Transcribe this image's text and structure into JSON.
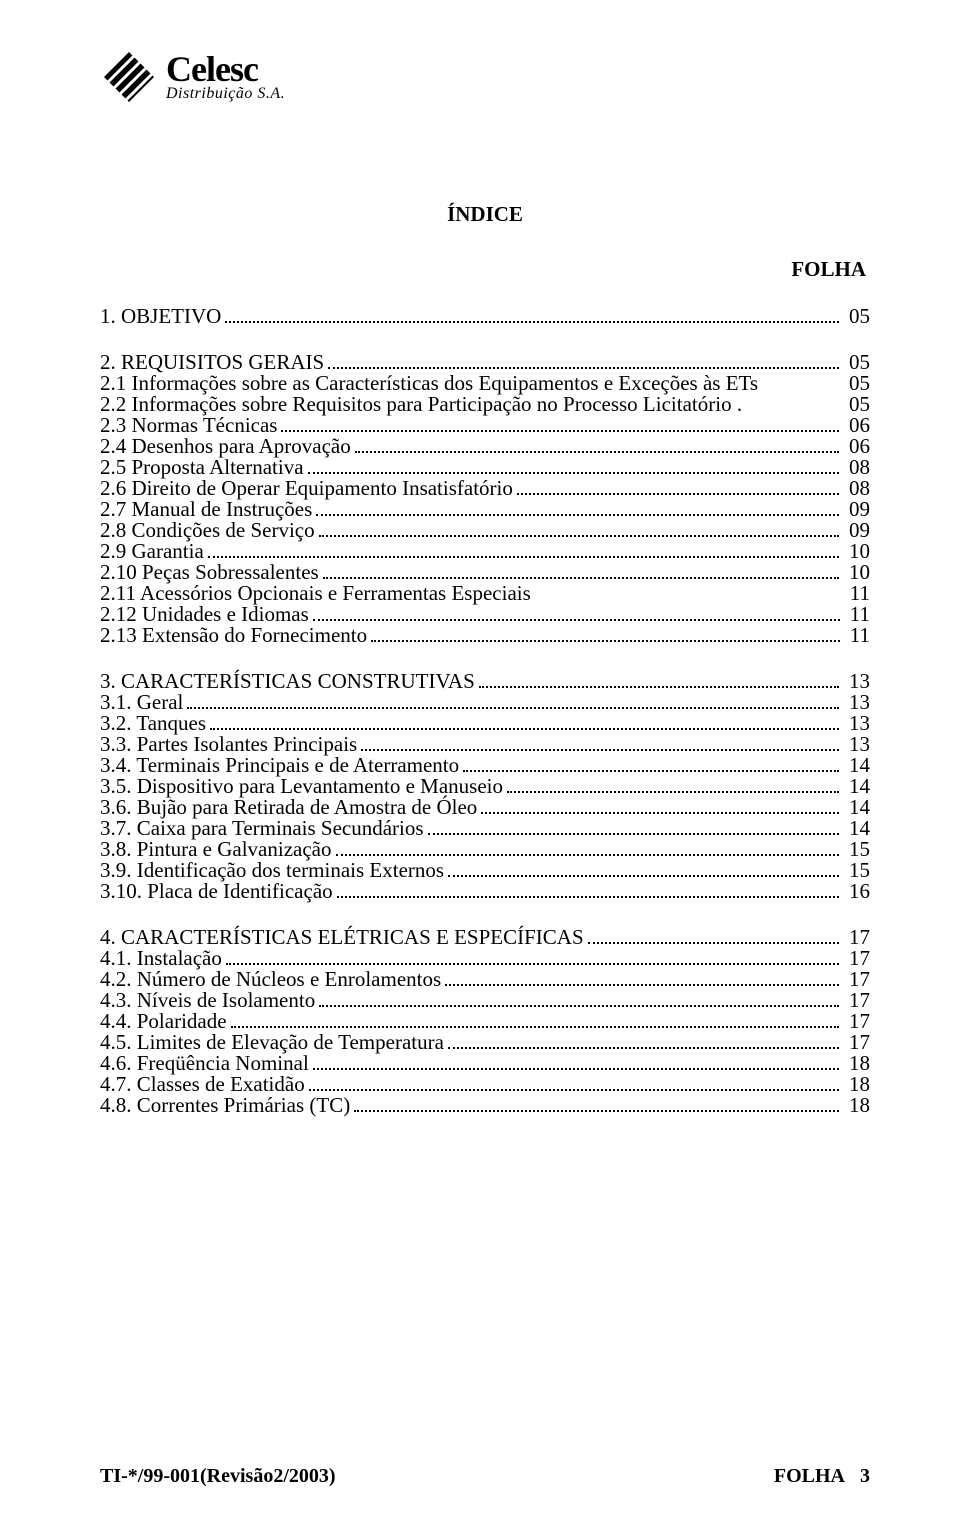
{
  "logo": {
    "brand": "Celesc",
    "sub": "Distribuição S.A."
  },
  "title": "ÍNDICE",
  "folha_header": "FOLHA",
  "sections": [
    {
      "rows": [
        {
          "label": "1. OBJETIVO",
          "page": "05",
          "dots": true
        }
      ]
    },
    {
      "rows": [
        {
          "label": "2. REQUISITOS GERAIS",
          "page": "05",
          "dots": true
        },
        {
          "label": "2.1 Informações sobre as Características dos Equipamentos e Exceções às ETs",
          "page": "05",
          "dots": false
        },
        {
          "label": "2.2 Informações sobre Requisitos para Participação no Processo Licitatório .",
          "page": "05",
          "dots": false
        },
        {
          "label": "2.3 Normas Técnicas",
          "page": "06",
          "dots": true
        },
        {
          "label": "2.4 Desenhos para Aprovação",
          "page": "06",
          "dots": true
        },
        {
          "label": "2.5 Proposta Alternativa",
          "page": "08",
          "dots": true
        },
        {
          "label": "2.6 Direito de Operar Equipamento Insatisfatório",
          "page": "08",
          "dots": true
        },
        {
          "label": "2.7 Manual de Instruções",
          "page": "09",
          "dots": true
        },
        {
          "label": "2.8 Condições de Serviço",
          "page": "09",
          "dots": true
        },
        {
          "label": "2.9 Garantia",
          "page": "10",
          "dots": true
        },
        {
          "label": "2.10 Peças Sobressalentes",
          "page": "10",
          "dots": true
        },
        {
          "label": "2.11 Acessórios Opcionais e Ferramentas Especiais",
          "page": "11",
          "dots": false
        },
        {
          "label": "2.12 Unidades e Idiomas",
          "page": "11",
          "dots": true
        },
        {
          "label": "2.13 Extensão do Fornecimento",
          "page": "11",
          "dots": true
        }
      ]
    },
    {
      "rows": [
        {
          "label": "3. CARACTERÍSTICAS CONSTRUTIVAS",
          "page": "13",
          "dots": true
        },
        {
          "label": "3.1. Geral",
          "page": "13",
          "dots": true
        },
        {
          "label": "3.2. Tanques",
          "page": "13",
          "dots": true
        },
        {
          "label": "3.3. Partes Isolantes Principais",
          "page": "13",
          "dots": true
        },
        {
          "label": "3.4. Terminais Principais e de Aterramento",
          "page": "14",
          "dots": true
        },
        {
          "label": "3.5. Dispositivo para Levantamento e Manuseio",
          "page": "14",
          "dots": true
        },
        {
          "label": "3.6. Bujão para Retirada de Amostra de Óleo",
          "page": "14",
          "dots": true
        },
        {
          "label": "3.7. Caixa para Terminais Secundários",
          "page": "14",
          "dots": true
        },
        {
          "label": "3.8. Pintura e Galvanização",
          "page": "15",
          "dots": true
        },
        {
          "label": "3.9. Identificação dos terminais Externos",
          "page": "15",
          "dots": true
        },
        {
          "label": "3.10. Placa de Identificação",
          "page": "16",
          "dots": true
        }
      ]
    },
    {
      "rows": [
        {
          "label": "4. CARACTERÍSTICAS ELÉTRICAS E ESPECÍFICAS",
          "page": "17",
          "dots": true
        },
        {
          "label": "4.1. Instalação",
          "page": "17",
          "dots": true
        },
        {
          "label": "4.2. Número de Núcleos e Enrolamentos",
          "page": "17",
          "dots": true
        },
        {
          "label": "4.3. Níveis de Isolamento",
          "page": "17",
          "dots": true
        },
        {
          "label": "4.4. Polaridade",
          "page": "17",
          "dots": true
        },
        {
          "label": "4.5. Limites de Elevação de Temperatura",
          "page": "17",
          "dots": true
        },
        {
          "label": "4.6. Freqüência Nominal",
          "page": "18",
          "dots": true
        },
        {
          "label": "4.7. Classes de Exatidão",
          "page": "18",
          "dots": true
        },
        {
          "label": "4.8. Correntes Primárias (TC)",
          "page": "18",
          "dots": true
        }
      ]
    }
  ],
  "footer": {
    "left": "TI-*/99-001(Revisão2/2003)",
    "right_label": "FOLHA",
    "right_num": "3"
  }
}
